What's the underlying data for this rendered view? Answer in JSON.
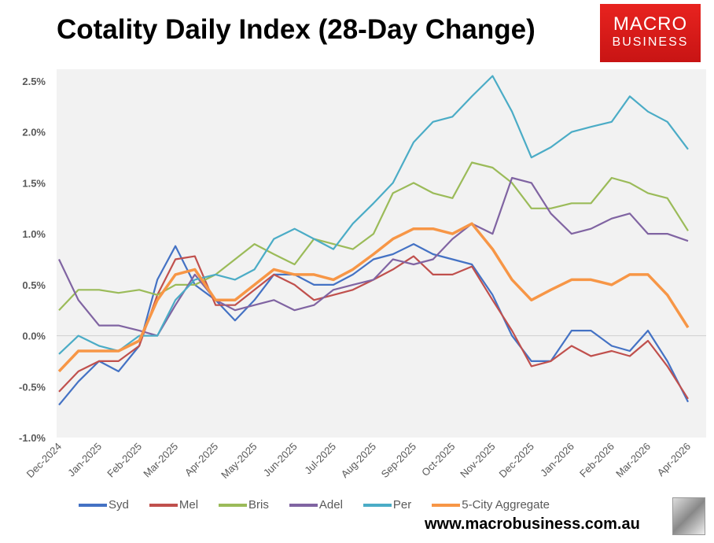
{
  "title": "Cotality Daily Index (28-Day Change)",
  "logo": {
    "line1": "MACRO",
    "line2": "BUSINESS"
  },
  "url": "www.macrobusiness.com.au",
  "chart_data": {
    "type": "line",
    "title": "Cotality Daily Index (28-Day Change)",
    "ylim": [
      -1.0,
      2.5
    ],
    "yticks": [
      "-1.0%",
      "-0.5%",
      "0.0%",
      "0.5%",
      "1.0%",
      "1.5%",
      "2.0%",
      "2.5%"
    ],
    "xticks": [
      "Dec-2024",
      "Jan-2025",
      "Feb-2025",
      "Mar-2025",
      "Apr-2025",
      "May-2025",
      "Jun-2025",
      "Jul-2025",
      "Aug-2025",
      "Sep-2025",
      "Oct-2025",
      "Nov-2025",
      "Dec-2025",
      "Jan-2026",
      "Feb-2026",
      "Mar-2026",
      "Apr-2026"
    ],
    "grid": false,
    "legend": "bottom",
    "x": [
      "2024-12-01",
      "2024-12-16",
      "2025-01-01",
      "2025-01-16",
      "2025-02-01",
      "2025-02-15",
      "2025-03-01",
      "2025-03-16",
      "2025-04-01",
      "2025-04-16",
      "2025-05-01",
      "2025-05-16",
      "2025-06-01",
      "2025-06-16",
      "2025-07-01",
      "2025-07-16",
      "2025-08-01",
      "2025-08-16",
      "2025-09-01",
      "2025-09-16",
      "2025-10-01",
      "2025-10-16",
      "2025-11-01",
      "2025-11-16",
      "2025-12-01",
      "2025-12-16",
      "2026-01-01",
      "2026-01-16",
      "2026-02-01",
      "2026-02-15",
      "2026-03-01",
      "2026-03-16",
      "2026-04-01"
    ],
    "series": [
      {
        "name": "Syd",
        "color": "#4472c4",
        "values": [
          -0.68,
          -0.45,
          -0.25,
          -0.35,
          -0.1,
          0.55,
          0.88,
          0.5,
          0.35,
          0.15,
          0.35,
          0.6,
          0.6,
          0.5,
          0.5,
          0.6,
          0.75,
          0.8,
          0.9,
          0.8,
          0.75,
          0.7,
          0.4,
          0.0,
          -0.25,
          -0.25,
          0.05,
          0.05,
          -0.1,
          -0.15,
          0.05,
          -0.25,
          -0.65
        ]
      },
      {
        "name": "Mel",
        "color": "#c0504d",
        "values": [
          -0.55,
          -0.35,
          -0.25,
          -0.25,
          -0.1,
          0.4,
          0.75,
          0.78,
          0.3,
          0.3,
          0.45,
          0.6,
          0.5,
          0.35,
          0.4,
          0.45,
          0.55,
          0.65,
          0.78,
          0.6,
          0.6,
          0.68,
          0.35,
          0.05,
          -0.3,
          -0.25,
          -0.1,
          -0.2,
          -0.15,
          -0.2,
          -0.05,
          -0.3,
          -0.62
        ]
      },
      {
        "name": "Bris",
        "color": "#9bbb59",
        "values": [
          0.25,
          0.45,
          0.45,
          0.42,
          0.45,
          0.4,
          0.5,
          0.5,
          0.6,
          0.75,
          0.9,
          0.8,
          0.7,
          0.95,
          0.9,
          0.85,
          1.0,
          1.4,
          1.5,
          1.4,
          1.35,
          1.7,
          1.65,
          1.5,
          1.25,
          1.25,
          1.3,
          1.3,
          1.55,
          1.5,
          1.4,
          1.35,
          1.03
        ]
      },
      {
        "name": "Adel",
        "color": "#8064a2",
        "values": [
          0.75,
          0.35,
          0.1,
          0.1,
          0.05,
          0.0,
          0.3,
          0.6,
          0.35,
          0.25,
          0.3,
          0.35,
          0.25,
          0.3,
          0.45,
          0.5,
          0.55,
          0.75,
          0.7,
          0.75,
          0.95,
          1.1,
          1.0,
          1.55,
          1.5,
          1.2,
          1.0,
          1.05,
          1.15,
          1.2,
          1.0,
          1.0,
          0.93
        ]
      },
      {
        "name": "Per",
        "color": "#4bacc6",
        "values": [
          -0.18,
          0.0,
          -0.1,
          -0.15,
          0.0,
          0.0,
          0.35,
          0.55,
          0.6,
          0.55,
          0.65,
          0.95,
          1.05,
          0.95,
          0.85,
          1.1,
          1.3,
          1.5,
          1.9,
          2.1,
          2.15,
          2.35,
          2.55,
          2.2,
          1.75,
          1.85,
          2.0,
          2.05,
          2.1,
          2.35,
          2.2,
          2.1,
          1.83
        ]
      },
      {
        "name": "5-City Aggregate",
        "color": "#f79646",
        "values": [
          -0.35,
          -0.15,
          -0.15,
          -0.15,
          -0.05,
          0.35,
          0.6,
          0.65,
          0.35,
          0.35,
          0.5,
          0.65,
          0.6,
          0.6,
          0.55,
          0.65,
          0.8,
          0.95,
          1.05,
          1.05,
          1.0,
          1.1,
          0.85,
          0.55,
          0.35,
          0.45,
          0.55,
          0.55,
          0.5,
          0.6,
          0.6,
          0.4,
          0.08
        ]
      }
    ]
  }
}
